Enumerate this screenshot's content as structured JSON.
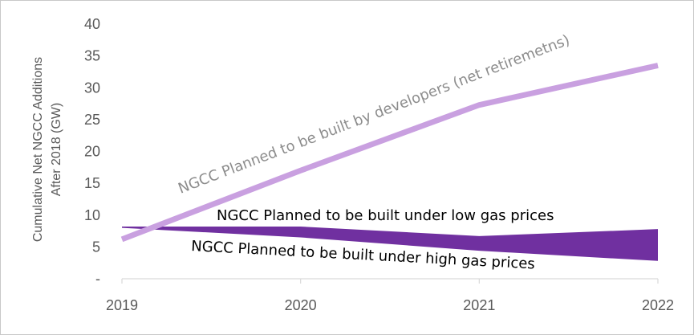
{
  "chart_data": {
    "type": "line",
    "title": "",
    "xlabel": "",
    "ylabel_lines": [
      "Cumulative Net NGCC Additions",
      "After 2018 (GW)"
    ],
    "x": [
      "2019",
      "2020",
      "2021",
      "2022"
    ],
    "ylim": [
      0,
      40
    ],
    "yticks": [
      "-",
      "5",
      "10",
      "15",
      "20",
      "25",
      "30",
      "35",
      "40"
    ],
    "grid": false,
    "legend": "none",
    "series": [
      {
        "values": [
          6.2,
          17.0,
          27.3,
          33.5
        ],
        "color": "#c9a0e0",
        "annotation": "NGCC Planned to be built by developers (net retiremetns)"
      },
      {
        "values": [
          8.2,
          8.2,
          6.7,
          7.8
        ],
        "color": "#7030a0",
        "annotation": "NGCC Planned to be built under low gas prices"
      },
      {
        "values": [
          8.0,
          6.5,
          4.4,
          2.8
        ],
        "color": "#7030a0",
        "annotation": "NGCC Planned to be built under high gas prices"
      }
    ]
  }
}
